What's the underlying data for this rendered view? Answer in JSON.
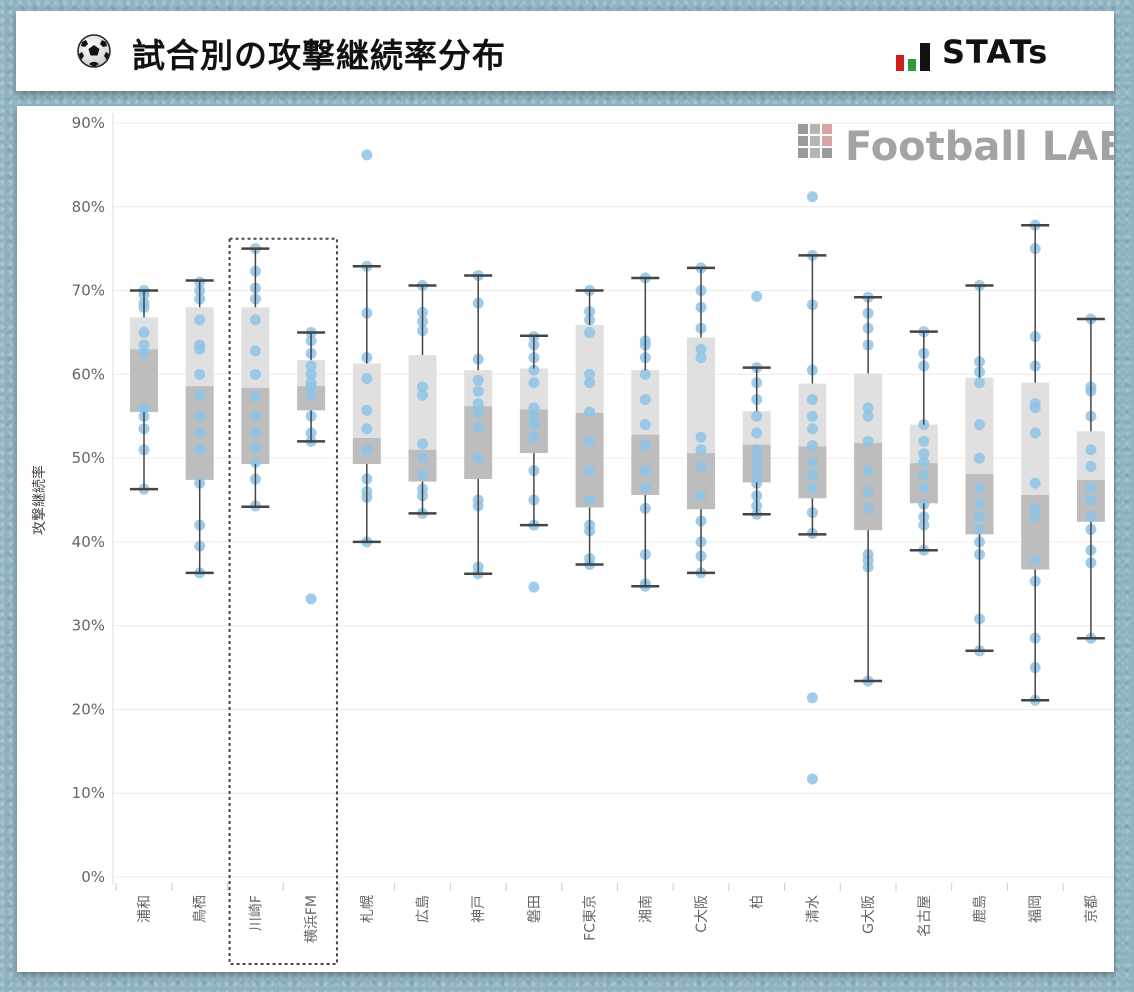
{
  "header": {
    "title": "試合別の攻撃継続率分布",
    "ball_icon": "soccer-ball-icon",
    "brand": "STATs",
    "brand_colors": [
      "#cc1f1f",
      "#2a9d3a",
      "#111111"
    ]
  },
  "watermark": "Football LAB",
  "chart_data": {
    "type": "box-plot",
    "ylabel": "攻撃継続率",
    "ylim": [
      0,
      90
    ],
    "yticks": [
      "0%",
      "10%",
      "20%",
      "30%",
      "40%",
      "50%",
      "60%",
      "70%",
      "80%",
      "90%"
    ],
    "grid": true,
    "highlight": [
      "川崎F",
      "横浜FM"
    ],
    "colors": {
      "box_upper": "#e0e0e0",
      "box_lower": "#bdbdbd",
      "point": "#8ec3e6",
      "whisker": "#444444",
      "grid": "#ebebeb"
    },
    "teams": [
      {
        "name": "浦和",
        "min": 46.3,
        "q1": 55.5,
        "median": 63.0,
        "q3": 66.8,
        "max": 70.0,
        "points": [
          70.0,
          69.5,
          68.5,
          68.0,
          65.0,
          63.5,
          62.5,
          56.0,
          55.0,
          53.5,
          51.0,
          46.3
        ]
      },
      {
        "name": "鳥栖",
        "min": 36.3,
        "q1": 47.4,
        "median": 58.6,
        "q3": 68.0,
        "max": 71.2,
        "points": [
          71.0,
          70.0,
          69.0,
          66.5,
          63.5,
          63.0,
          60.0,
          57.5,
          55.0,
          53.0,
          51.0,
          47.0,
          42.0,
          39.5,
          36.3
        ]
      },
      {
        "name": "川崎F",
        "min": 44.2,
        "q1": 49.3,
        "median": 58.4,
        "q3": 68.0,
        "max": 75.0,
        "points": [
          75.0,
          72.3,
          70.3,
          69.0,
          66.5,
          62.8,
          60.0,
          57.3,
          55.0,
          53.0,
          51.3,
          49.5,
          47.5,
          44.3
        ]
      },
      {
        "name": "横浜FM",
        "min": 52.0,
        "q1": 55.7,
        "median": 58.6,
        "q3": 61.7,
        "max": 65.0,
        "points": [
          65.0,
          64.0,
          62.5,
          61.0,
          60.0,
          59.0,
          58.5,
          57.5,
          55.0,
          53.0,
          52.0,
          33.2
        ]
      },
      {
        "name": "札幌",
        "min": 40.0,
        "q1": 49.3,
        "median": 52.4,
        "q3": 61.3,
        "max": 72.9,
        "points": [
          86.2,
          72.9,
          67.3,
          62.0,
          59.5,
          55.7,
          53.5,
          51.0,
          47.5,
          46.0,
          45.3,
          40.0
        ]
      },
      {
        "name": "広島",
        "min": 43.4,
        "q1": 47.2,
        "median": 51.0,
        "q3": 62.3,
        "max": 70.6,
        "points": [
          70.6,
          67.4,
          66.3,
          65.2,
          58.5,
          57.5,
          51.7,
          50.0,
          48.0,
          46.3,
          45.5,
          43.4
        ]
      },
      {
        "name": "神戸",
        "min": 36.2,
        "q1": 47.5,
        "median": 56.2,
        "q3": 60.5,
        "max": 71.8,
        "points": [
          71.8,
          68.5,
          61.8,
          59.3,
          58.0,
          56.5,
          55.5,
          53.7,
          50.0,
          45.0,
          44.3,
          37.0,
          36.2
        ]
      },
      {
        "name": "磐田",
        "min": 42.0,
        "q1": 50.6,
        "median": 55.8,
        "q3": 60.7,
        "max": 64.6,
        "points": [
          64.5,
          63.5,
          62.0,
          60.5,
          59.0,
          56.0,
          55.0,
          54.0,
          52.5,
          48.5,
          45.0,
          42.0,
          34.6
        ]
      },
      {
        "name": "FC東京",
        "min": 37.3,
        "q1": 44.1,
        "median": 55.4,
        "q3": 65.9,
        "max": 70.0,
        "points": [
          70.0,
          67.5,
          66.5,
          65.0,
          60.0,
          59.0,
          55.5,
          52.0,
          48.5,
          45.0,
          42.0,
          41.3,
          38.0,
          37.3
        ]
      },
      {
        "name": "湘南",
        "min": 34.7,
        "q1": 45.6,
        "median": 52.8,
        "q3": 60.5,
        "max": 71.5,
        "points": [
          71.5,
          64.0,
          63.5,
          62.0,
          60.0,
          57.0,
          54.0,
          51.5,
          48.5,
          46.5,
          44.0,
          38.5,
          35.0,
          34.7
        ]
      },
      {
        "name": "C大阪",
        "min": 36.3,
        "q1": 43.9,
        "median": 50.6,
        "q3": 64.4,
        "max": 72.7,
        "points": [
          72.7,
          70.0,
          68.0,
          65.5,
          63.0,
          62.0,
          52.5,
          51.0,
          49.0,
          45.5,
          42.5,
          40.0,
          38.3,
          36.3
        ]
      },
      {
        "name": "柏",
        "min": 43.3,
        "q1": 47.1,
        "median": 51.6,
        "q3": 55.6,
        "max": 60.8,
        "points": [
          69.3,
          60.8,
          59.0,
          57.0,
          55.0,
          53.0,
          51.0,
          50.0,
          49.0,
          48.0,
          47.0,
          45.5,
          44.3,
          43.3
        ]
      },
      {
        "name": "清水",
        "min": 40.9,
        "q1": 45.2,
        "median": 51.4,
        "q3": 58.9,
        "max": 74.2,
        "points": [
          81.2,
          74.2,
          68.3,
          60.5,
          57.0,
          55.0,
          53.5,
          51.5,
          49.5,
          48.0,
          46.5,
          43.5,
          41.0,
          21.4,
          11.7
        ]
      },
      {
        "name": "G大阪",
        "min": 23.4,
        "q1": 41.4,
        "median": 51.8,
        "q3": 60.1,
        "max": 69.2,
        "points": [
          69.2,
          67.3,
          65.5,
          63.5,
          56.0,
          55.0,
          52.0,
          48.5,
          46.0,
          44.0,
          38.5,
          37.8,
          37.0,
          23.4
        ]
      },
      {
        "name": "名古屋",
        "min": 39.0,
        "q1": 44.6,
        "median": 49.4,
        "q3": 54.0,
        "max": 65.1,
        "points": [
          65.1,
          62.5,
          61.0,
          54.0,
          52.0,
          50.5,
          49.5,
          48.0,
          46.5,
          44.5,
          43.0,
          42.0,
          39.0
        ]
      },
      {
        "name": "鹿島",
        "min": 27.0,
        "q1": 40.9,
        "median": 48.1,
        "q3": 59.6,
        "max": 70.6,
        "points": [
          70.6,
          61.5,
          60.3,
          59.0,
          54.0,
          50.0,
          46.5,
          44.5,
          43.0,
          41.5,
          40.0,
          38.5,
          30.8,
          27.0
        ]
      },
      {
        "name": "福岡",
        "min": 21.1,
        "q1": 36.7,
        "median": 45.6,
        "q3": 59.0,
        "max": 77.8,
        "points": [
          77.8,
          75.0,
          64.5,
          61.0,
          56.5,
          56.0,
          53.0,
          47.0,
          44.0,
          43.0,
          37.8,
          35.3,
          28.5,
          25.0,
          21.1
        ]
      },
      {
        "name": "京都",
        "min": 28.5,
        "q1": 42.4,
        "median": 47.4,
        "q3": 53.2,
        "max": 66.6,
        "points": [
          66.6,
          58.5,
          58.0,
          55.0,
          51.0,
          49.0,
          46.5,
          45.0,
          43.0,
          41.5,
          39.0,
          37.5,
          28.5
        ]
      }
    ]
  }
}
